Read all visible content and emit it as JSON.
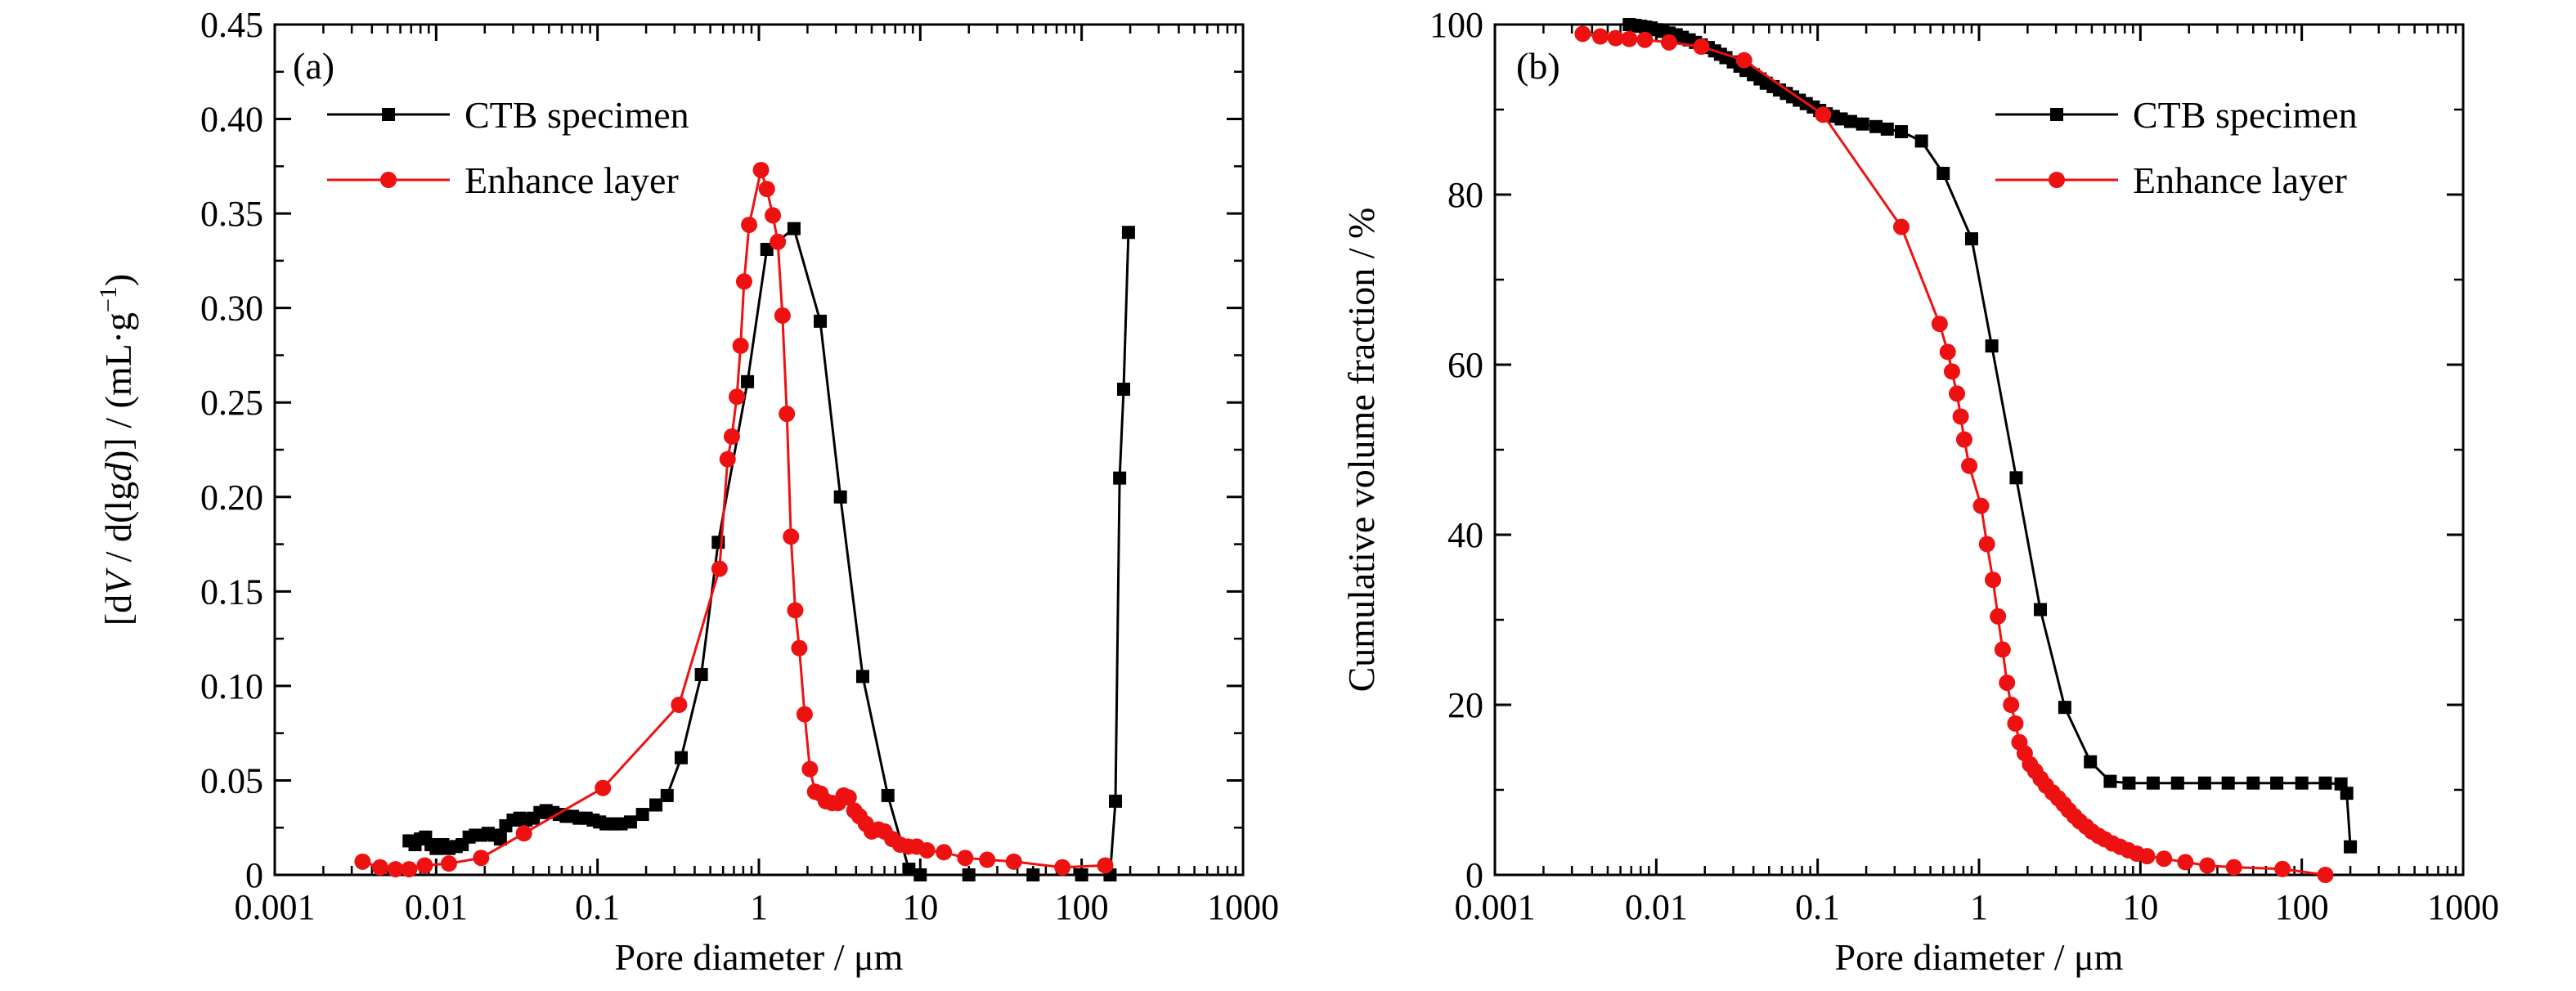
{
  "colors": {
    "ctb": "#000000",
    "enhance": "#ee1111",
    "axis": "#000000"
  },
  "chart_data": [
    {
      "type": "line",
      "panel_label": "(a)",
      "xlabel": "Pore diameter / μm",
      "ylabel": "[dV / d(lgd)] / (mL·g⁻¹)",
      "ylabel_parts": [
        "[d",
        "V",
        " / d(lg",
        "d",
        ")] / (mL·g",
        "−1",
        ")"
      ],
      "xscale": "log",
      "xlim": [
        0.001,
        1000
      ],
      "ylim": [
        0,
        0.45
      ],
      "xticks": [
        "0.001",
        "0.01",
        "0.1",
        "1",
        "10",
        "100",
        "1000"
      ],
      "yticks": [
        "0",
        "0.05",
        "0.10",
        "0.15",
        "0.20",
        "0.25",
        "0.30",
        "0.35",
        "0.40",
        "0.45"
      ],
      "legend_position": "upper-left",
      "series": [
        {
          "name": "CTB specimen",
          "marker": "square",
          "color": "#000000",
          "points": [
            [
              0.0068,
              0.018
            ],
            [
              0.0074,
              0.016
            ],
            [
              0.008,
              0.019
            ],
            [
              0.0086,
              0.02
            ],
            [
              0.0093,
              0.016
            ],
            [
              0.01,
              0.014
            ],
            [
              0.011,
              0.016
            ],
            [
              0.012,
              0.014
            ],
            [
              0.0133,
              0.015
            ],
            [
              0.0145,
              0.016
            ],
            [
              0.016,
              0.02
            ],
            [
              0.0175,
              0.021
            ],
            [
              0.019,
              0.021
            ],
            [
              0.021,
              0.022
            ],
            [
              0.023,
              0.021
            ],
            [
              0.025,
              0.019
            ],
            [
              0.027,
              0.026
            ],
            [
              0.03,
              0.029
            ],
            [
              0.033,
              0.03
            ],
            [
              0.036,
              0.029
            ],
            [
              0.04,
              0.03
            ],
            [
              0.044,
              0.033
            ],
            [
              0.048,
              0.034
            ],
            [
              0.053,
              0.033
            ],
            [
              0.058,
              0.032
            ],
            [
              0.064,
              0.031
            ],
            [
              0.07,
              0.031
            ],
            [
              0.077,
              0.03
            ],
            [
              0.085,
              0.03
            ],
            [
              0.094,
              0.029
            ],
            [
              0.103,
              0.028
            ],
            [
              0.113,
              0.027
            ],
            [
              0.125,
              0.027
            ],
            [
              0.14,
              0.027
            ],
            [
              0.16,
              0.028
            ],
            [
              0.19,
              0.032
            ],
            [
              0.23,
              0.037
            ],
            [
              0.27,
              0.042
            ],
            [
              0.33,
              0.062
            ],
            [
              0.44,
              0.106
            ],
            [
              0.56,
              0.176
            ],
            [
              0.85,
              0.261
            ],
            [
              1.12,
              0.331
            ],
            [
              1.65,
              0.342
            ],
            [
              2.4,
              0.293
            ],
            [
              3.2,
              0.2
            ],
            [
              4.4,
              0.105
            ],
            [
              6.3,
              0.042
            ],
            [
              8.5,
              0.003
            ],
            [
              10,
              0.0
            ],
            [
              20,
              0.0
            ],
            [
              50,
              0.0
            ],
            [
              100,
              0.0
            ],
            [
              150,
              0.0
            ],
            [
              162,
              0.039
            ],
            [
              172,
              0.21
            ],
            [
              182,
              0.257
            ],
            [
              195,
              0.34
            ]
          ]
        },
        {
          "name": "Enhance layer",
          "marker": "circle",
          "color": "#ee1111",
          "points": [
            [
              0.0035,
              0.007
            ],
            [
              0.0045,
              0.004
            ],
            [
              0.0056,
              0.003
            ],
            [
              0.0068,
              0.003
            ],
            [
              0.0085,
              0.005
            ],
            [
              0.012,
              0.006
            ],
            [
              0.019,
              0.009
            ],
            [
              0.035,
              0.022
            ],
            [
              0.108,
              0.046
            ],
            [
              0.32,
              0.09
            ],
            [
              0.57,
              0.162
            ],
            [
              0.64,
              0.22
            ],
            [
              0.68,
              0.232
            ],
            [
              0.73,
              0.253
            ],
            [
              0.77,
              0.28
            ],
            [
              0.81,
              0.314
            ],
            [
              0.87,
              0.344
            ],
            [
              1.03,
              0.373
            ],
            [
              1.12,
              0.363
            ],
            [
              1.22,
              0.349
            ],
            [
              1.31,
              0.335
            ],
            [
              1.4,
              0.296
            ],
            [
              1.49,
              0.244
            ],
            [
              1.58,
              0.179
            ],
            [
              1.68,
              0.14
            ],
            [
              1.78,
              0.12
            ],
            [
              1.92,
              0.085
            ],
            [
              2.07,
              0.056
            ],
            [
              2.23,
              0.044
            ],
            [
              2.41,
              0.043
            ],
            [
              2.6,
              0.039
            ],
            [
              2.85,
              0.038
            ],
            [
              3.1,
              0.038
            ],
            [
              3.35,
              0.042
            ],
            [
              3.6,
              0.041
            ],
            [
              3.9,
              0.034
            ],
            [
              4.2,
              0.031
            ],
            [
              4.6,
              0.027
            ],
            [
              5.0,
              0.023
            ],
            [
              5.5,
              0.024
            ],
            [
              6.0,
              0.023
            ],
            [
              6.7,
              0.019
            ],
            [
              7.5,
              0.016
            ],
            [
              8.4,
              0.015
            ],
            [
              9.5,
              0.015
            ],
            [
              11,
              0.013
            ],
            [
              14,
              0.012
            ],
            [
              19,
              0.009
            ],
            [
              26,
              0.008
            ],
            [
              38,
              0.007
            ],
            [
              76,
              0.004
            ],
            [
              140,
              0.005
            ]
          ]
        }
      ]
    },
    {
      "type": "line",
      "panel_label": "(b)",
      "xlabel": "Pore diameter / μm",
      "ylabel": "Cumulative volume fraction / %",
      "xscale": "log",
      "xlim": [
        0.001,
        1000
      ],
      "ylim": [
        0,
        100
      ],
      "xticks": [
        "0.001",
        "0.01",
        "0.1",
        "1",
        "10",
        "100",
        "1000"
      ],
      "yticks": [
        "0",
        "20",
        "40",
        "60",
        "80",
        "100"
      ],
      "legend_position": "upper-right",
      "series": [
        {
          "name": "CTB specimen",
          "marker": "square",
          "color": "#000000",
          "points": [
            [
              0.0068,
              100.0
            ],
            [
              0.0074,
              99.9
            ],
            [
              0.008,
              99.8
            ],
            [
              0.0086,
              99.7
            ],
            [
              0.0093,
              99.6
            ],
            [
              0.01,
              99.4
            ],
            [
              0.011,
              99.2
            ],
            [
              0.012,
              99.0
            ],
            [
              0.0133,
              98.8
            ],
            [
              0.0145,
              98.5
            ],
            [
              0.016,
              98.2
            ],
            [
              0.0175,
              97.9
            ],
            [
              0.019,
              97.6
            ],
            [
              0.021,
              97.3
            ],
            [
              0.023,
              96.9
            ],
            [
              0.025,
              96.5
            ],
            [
              0.027,
              96.1
            ],
            [
              0.03,
              95.6
            ],
            [
              0.033,
              95.1
            ],
            [
              0.036,
              94.6
            ],
            [
              0.04,
              94.1
            ],
            [
              0.044,
              93.6
            ],
            [
              0.048,
              93.1
            ],
            [
              0.053,
              92.7
            ],
            [
              0.058,
              92.3
            ],
            [
              0.064,
              91.9
            ],
            [
              0.07,
              91.5
            ],
            [
              0.077,
              91.1
            ],
            [
              0.085,
              90.7
            ],
            [
              0.094,
              90.3
            ],
            [
              0.103,
              89.9
            ],
            [
              0.113,
              89.5
            ],
            [
              0.125,
              89.2
            ],
            [
              0.14,
              88.9
            ],
            [
              0.16,
              88.6
            ],
            [
              0.19,
              88.3
            ],
            [
              0.23,
              88.0
            ],
            [
              0.27,
              87.7
            ],
            [
              0.33,
              87.4
            ],
            [
              0.44,
              86.3
            ],
            [
              0.6,
              82.5
            ],
            [
              0.9,
              74.8
            ],
            [
              1.2,
              62.2
            ],
            [
              1.7,
              46.7
            ],
            [
              2.4,
              31.2
            ],
            [
              3.4,
              19.7
            ],
            [
              4.9,
              13.3
            ],
            [
              6.5,
              11.0
            ],
            [
              8.5,
              10.8
            ],
            [
              12,
              10.8
            ],
            [
              17,
              10.8
            ],
            [
              25,
              10.8
            ],
            [
              35,
              10.8
            ],
            [
              50,
              10.8
            ],
            [
              70,
              10.8
            ],
            [
              100,
              10.8
            ],
            [
              140,
              10.8
            ],
            [
              175,
              10.7
            ],
            [
              190,
              9.6
            ],
            [
              200,
              3.3
            ]
          ]
        },
        {
          "name": "Enhance layer",
          "marker": "circle",
          "color": "#ee1111",
          "points": [
            [
              0.0035,
              98.9
            ],
            [
              0.0045,
              98.6
            ],
            [
              0.0056,
              98.4
            ],
            [
              0.0068,
              98.3
            ],
            [
              0.0085,
              98.2
            ],
            [
              0.012,
              97.9
            ],
            [
              0.019,
              97.4
            ],
            [
              0.035,
              95.8
            ],
            [
              0.108,
              89.4
            ],
            [
              0.33,
              76.2
            ],
            [
              0.57,
              64.8
            ],
            [
              0.64,
              61.5
            ],
            [
              0.68,
              59.2
            ],
            [
              0.73,
              56.6
            ],
            [
              0.77,
              53.9
            ],
            [
              0.81,
              51.2
            ],
            [
              0.87,
              48.1
            ],
            [
              1.03,
              43.4
            ],
            [
              1.12,
              38.9
            ],
            [
              1.22,
              34.7
            ],
            [
              1.31,
              30.4
            ],
            [
              1.4,
              26.5
            ],
            [
              1.49,
              22.6
            ],
            [
              1.58,
              20.0
            ],
            [
              1.68,
              17.8
            ],
            [
              1.78,
              15.6
            ],
            [
              1.92,
              14.3
            ],
            [
              2.07,
              13.0
            ],
            [
              2.23,
              12.2
            ],
            [
              2.41,
              11.3
            ],
            [
              2.6,
              10.5
            ],
            [
              2.85,
              9.7
            ],
            [
              3.1,
              9.0
            ],
            [
              3.35,
              8.3
            ],
            [
              3.6,
              7.6
            ],
            [
              3.9,
              6.9
            ],
            [
              4.2,
              6.3
            ],
            [
              4.6,
              5.7
            ],
            [
              5.0,
              5.1
            ],
            [
              5.5,
              4.6
            ],
            [
              6.0,
              4.2
            ],
            [
              6.7,
              3.7
            ],
            [
              7.5,
              3.3
            ],
            [
              8.4,
              2.9
            ],
            [
              9.5,
              2.5
            ],
            [
              11,
              2.2
            ],
            [
              14,
              1.9
            ],
            [
              19,
              1.5
            ],
            [
              26,
              1.1
            ],
            [
              38,
              0.9
            ],
            [
              76,
              0.7
            ],
            [
              140,
              0.0
            ]
          ]
        }
      ]
    }
  ]
}
